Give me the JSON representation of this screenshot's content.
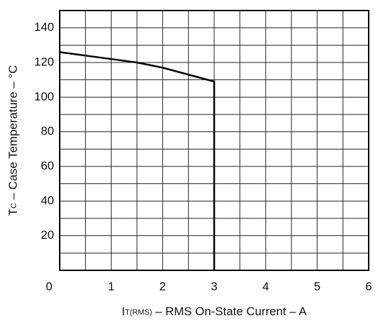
{
  "chart_data": {
    "type": "line",
    "x_label": {
      "symbol": "I",
      "subscript": "T(RMS)",
      "text": " – RMS On-State Current – A"
    },
    "y_label": {
      "symbol": "T",
      "subscript": "C",
      "text": " – Case Temperature – °C"
    },
    "x": [
      0,
      0.5,
      1,
      1.5,
      2,
      2.5,
      3,
      3
    ],
    "series": [
      {
        "color": "#000000",
        "values": [
          126,
          124,
          122,
          120,
          117,
          113,
          109,
          0
        ]
      }
    ],
    "xlim": [
      0,
      6
    ],
    "xticks": [
      0,
      1,
      2,
      3,
      4,
      5,
      6
    ],
    "ylim": [
      0,
      150
    ],
    "yticks": [
      20,
      40,
      60,
      80,
      100,
      120,
      140
    ],
    "grid": true
  }
}
